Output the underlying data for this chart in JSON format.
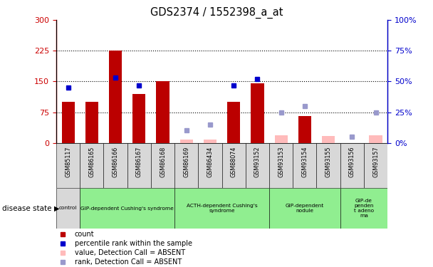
{
  "title": "GDS2374 / 1552398_a_at",
  "samples": [
    "GSM85117",
    "GSM86165",
    "GSM86166",
    "GSM86167",
    "GSM86168",
    "GSM86169",
    "GSM86434",
    "GSM88074",
    "GSM93152",
    "GSM93153",
    "GSM93154",
    "GSM93155",
    "GSM93156",
    "GSM93157"
  ],
  "count_values": [
    100,
    100,
    225,
    120,
    150,
    null,
    null,
    100,
    145,
    null,
    65,
    null,
    null,
    null
  ],
  "rank_values": [
    45,
    null,
    53,
    47,
    null,
    null,
    null,
    47,
    52,
    null,
    null,
    null,
    null,
    null
  ],
  "count_absent": [
    null,
    null,
    null,
    null,
    null,
    8,
    8,
    null,
    null,
    18,
    null,
    17,
    null,
    18
  ],
  "rank_absent": [
    null,
    null,
    null,
    null,
    null,
    10,
    15,
    null,
    null,
    25,
    30,
    null,
    5,
    25
  ],
  "groups": [
    {
      "label": "control",
      "start": 0,
      "end": 1,
      "bg": "#d8d8d8",
      "green": false
    },
    {
      "label": "GIP-dependent Cushing's syndrome",
      "start": 1,
      "end": 5,
      "bg": "#90ee90",
      "green": true
    },
    {
      "label": "ACTH-dependent Cushing's\nsyndrome",
      "start": 5,
      "end": 9,
      "bg": "#90ee90",
      "green": true
    },
    {
      "label": "GIP-dependent\nnodule",
      "start": 9,
      "end": 12,
      "bg": "#90ee90",
      "green": true
    },
    {
      "label": "GIP-de\npenden\nt adeno\nma",
      "start": 12,
      "end": 14,
      "bg": "#90ee90",
      "green": true
    }
  ],
  "ylim_left": [
    0,
    300
  ],
  "ylim_right": [
    0,
    100
  ],
  "yticks_left": [
    0,
    75,
    150,
    225,
    300
  ],
  "yticks_right": [
    0,
    25,
    50,
    75,
    100
  ],
  "bar_color_red": "#bb0000",
  "bar_color_pink": "#ffbbbb",
  "dot_color_blue": "#0000cc",
  "dot_color_lightblue": "#9999cc",
  "tick_color_left": "#cc0000",
  "tick_color_right": "#0000cc",
  "legend_items": [
    {
      "color": "#bb0000",
      "marker": "s",
      "label": "count"
    },
    {
      "color": "#0000cc",
      "marker": "s",
      "label": "percentile rank within the sample"
    },
    {
      "color": "#ffbbbb",
      "marker": "s",
      "label": "value, Detection Call = ABSENT"
    },
    {
      "color": "#9999cc",
      "marker": "s",
      "label": "rank, Detection Call = ABSENT"
    }
  ]
}
